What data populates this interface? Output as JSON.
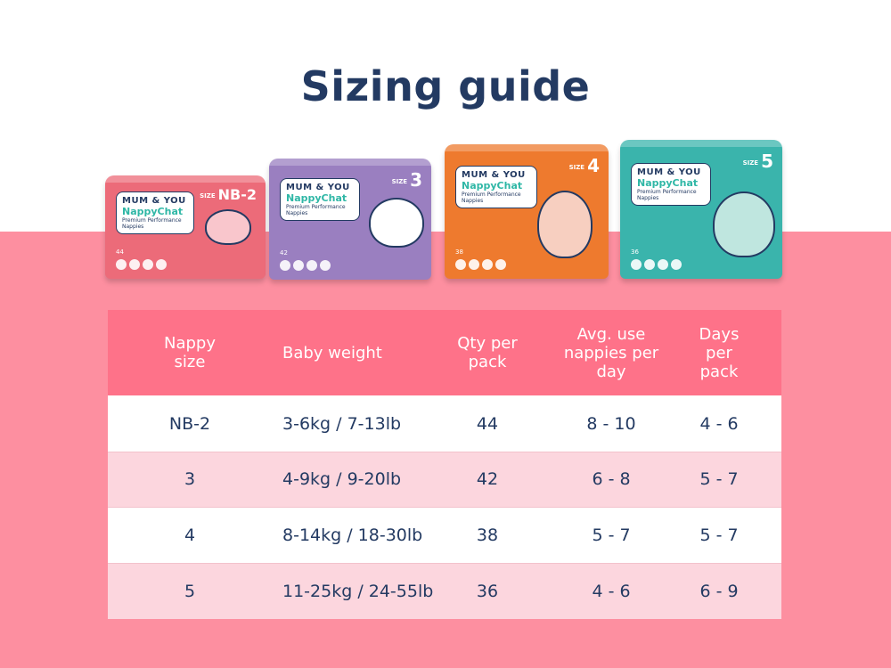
{
  "title": {
    "regular": "Sizing",
    "bold": "guide"
  },
  "colors": {
    "navy": "#233a62",
    "page_pink": "#fd8fa0",
    "header_pink": "#fe7289",
    "row_alt": "#fcd6de"
  },
  "packs": [
    {
      "brand": "MUM & YOU",
      "product": "NappyChat",
      "tagline": "Premium Performance Nappies",
      "size": "NB-2",
      "size_prefix": "SIZE",
      "count": "44",
      "color": "#ec6b79",
      "critter": "sheep"
    },
    {
      "brand": "MUM & YOU",
      "product": "NappyChat",
      "tagline": "Premium Performance Nappies",
      "size": "3",
      "size_prefix": "SIZE",
      "count": "42",
      "color": "#9a7fc0",
      "critter": "cow"
    },
    {
      "brand": "MUM & YOU",
      "product": "NappyChat",
      "tagline": "Premium Performance Nappies",
      "size": "4",
      "size_prefix": "SIZE",
      "count": "38",
      "color": "#ee7a2e",
      "critter": "dinosaur"
    },
    {
      "brand": "MUM & YOU",
      "product": "NappyChat",
      "tagline": "Premium Performance Nappies",
      "size": "5",
      "size_prefix": "SIZE",
      "count": "36",
      "color": "#3ab4ac",
      "critter": "elephant"
    }
  ],
  "table": {
    "headers": [
      "Nappy size",
      "Baby weight",
      "Qty per pack",
      "Avg. use nappies per day",
      "Days per pack"
    ],
    "rows": [
      [
        "NB-2",
        "3-6kg / 7-13lb",
        "44",
        "8 - 10",
        "4 - 6"
      ],
      [
        "3",
        "4-9kg / 9-20lb",
        "42",
        "6 - 8",
        "5 - 7"
      ],
      [
        "4",
        "8-14kg / 18-30lb",
        "38",
        "5 - 7",
        "5 - 7"
      ],
      [
        "5",
        "11-25kg / 24-55lb",
        "36",
        "4 - 6",
        "6 - 9"
      ]
    ]
  }
}
